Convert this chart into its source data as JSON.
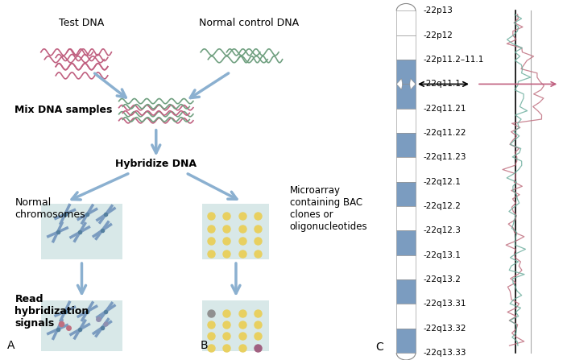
{
  "chromosome_labels": [
    "-22p13",
    "-22p12",
    "-22p11.2–11.1",
    "-22q11.1",
    "-22q11.21",
    "-22q11.22",
    "-22q11.23",
    "-22q12.1",
    "-22q12.2",
    "-22q12.3",
    "-22q13.1",
    "-22q13.2",
    "-22q13.31",
    "-22q13.32",
    "-22q13.33"
  ],
  "band_colors": [
    "white",
    "white",
    "#7B9CC0",
    "#7B9CC0",
    "white",
    "#7B9CC0",
    "white",
    "#7B9CC0",
    "white",
    "#7B9CC0",
    "white",
    "#7B9CC0",
    "white",
    "#7B9CC0",
    "white"
  ],
  "chr_color_dark": "#6B8EB5",
  "arrow_color": "#8BB0D0",
  "dna_pink": "#C06080",
  "dna_green": "#70A080",
  "line_color1": "#C07080",
  "line_color2": "#70B0A0",
  "bg_color": "#FFFFFF",
  "label_fontsize": 7.5,
  "title_left": "Test DNA",
  "title_right": "Normal control DNA"
}
